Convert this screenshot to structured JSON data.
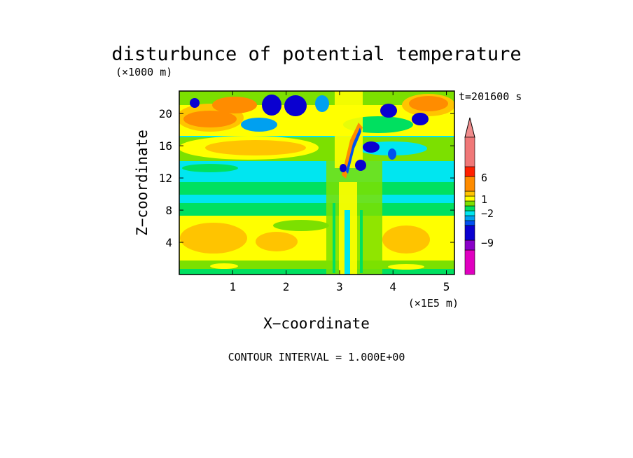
{
  "chart_data": {
    "type": "heatmap",
    "title": "disturbunce of potential temperature",
    "subtitle": "t=201600 s",
    "xlabel": "X−coordinate",
    "ylabel": "Z−coordinate",
    "x_unit": "(×1E5 m)",
    "y_unit": "(×1000 m)",
    "xlim": [
      0,
      5.15
    ],
    "ylim": [
      0,
      22.8
    ],
    "x_ticks": [
      1,
      2,
      3,
      4,
      5
    ],
    "y_ticks": [
      4,
      8,
      12,
      16,
      20
    ],
    "footer": "CONTOUR INTERVAL = 1.000E+00",
    "colorbar": {
      "tick_labels": [
        "6",
        "1",
        "−2",
        "−9"
      ],
      "levels": [
        {
          "from": -14,
          "to": -9,
          "color": "#e000c0"
        },
        {
          "from": -9,
          "to": -7,
          "color": "#8a00c8"
        },
        {
          "from": -7,
          "to": -4,
          "color": "#0a00d0"
        },
        {
          "from": -4,
          "to": -3,
          "color": "#0050f0"
        },
        {
          "from": -3,
          "to": -2,
          "color": "#00a0f0"
        },
        {
          "from": -2,
          "to": -1,
          "color": "#00e6f0"
        },
        {
          "from": -1,
          "to": 0,
          "color": "#00e060"
        },
        {
          "from": 0,
          "to": 1,
          "color": "#7ce000"
        },
        {
          "from": 1,
          "to": 2,
          "color": "#ffff00"
        },
        {
          "from": 2,
          "to": 3,
          "color": "#ffc400"
        },
        {
          "from": 3,
          "to": 6,
          "color": "#ff8c00"
        },
        {
          "from": 6,
          "to": 8,
          "color": "#ff2000"
        },
        {
          "from": 8,
          "to": 14,
          "color": "#f07878"
        }
      ],
      "extend_color": "#f08c8c"
    }
  }
}
